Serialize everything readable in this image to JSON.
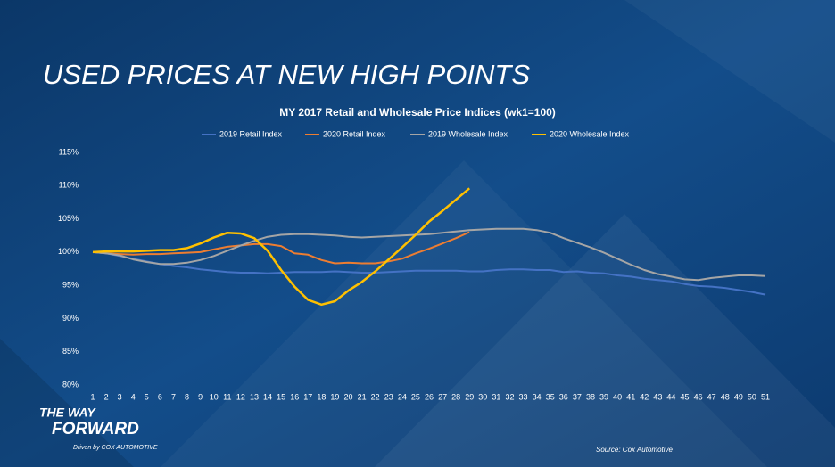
{
  "slide": {
    "title": "USED PRICES AT NEW HIGH POINTS",
    "brand_line1": "THE WAY",
    "brand_line2": "FORWARD",
    "brand_tagline": "Driven by COX AUTOMOTIVE",
    "source": "Source: Cox Automotive"
  },
  "chart_data": {
    "type": "line",
    "title": "MY 2017 Retail and Wholesale Price Indices (wk1=100)",
    "categories": [
      1,
      2,
      3,
      4,
      5,
      6,
      7,
      8,
      9,
      10,
      11,
      12,
      13,
      14,
      15,
      16,
      17,
      18,
      19,
      20,
      21,
      22,
      23,
      24,
      25,
      26,
      27,
      28,
      29,
      30,
      31,
      32,
      33,
      34,
      35,
      36,
      37,
      38,
      39,
      40,
      41,
      42,
      43,
      44,
      45,
      46,
      47,
      48,
      49,
      50,
      51
    ],
    "series": [
      {
        "name": "2019 Retail Index",
        "color": "#4472c4",
        "values": [
          100,
          99.8,
          99.4,
          99,
          98.6,
          98.2,
          97.9,
          97.7,
          97.4,
          97.2,
          97.0,
          96.9,
          96.9,
          96.8,
          96.9,
          97.0,
          97.0,
          97.0,
          97.1,
          97.0,
          96.9,
          96.9,
          97.0,
          97.1,
          97.2,
          97.2,
          97.2,
          97.2,
          97.1,
          97.1,
          97.3,
          97.4,
          97.4,
          97.3,
          97.3,
          97.0,
          97.1,
          96.9,
          96.8,
          96.5,
          96.3,
          96.0,
          95.8,
          95.6,
          95.2,
          94.9,
          94.8,
          94.6,
          94.3,
          94.0,
          93.6
        ]
      },
      {
        "name": "2020 Retail Index",
        "color": "#ed7d31",
        "values": [
          100,
          99.8,
          99.7,
          99.6,
          99.7,
          99.7,
          99.8,
          99.9,
          100.0,
          100.4,
          100.8,
          101.0,
          101.2,
          101.2,
          100.9,
          99.8,
          99.6,
          98.8,
          98.3,
          98.4,
          98.3,
          98.3,
          98.6,
          99.0,
          99.8,
          100.5,
          101.3,
          102.1,
          103.0,
          null,
          null,
          null,
          null,
          null,
          null,
          null,
          null,
          null,
          null,
          null,
          null,
          null,
          null,
          null,
          null,
          null,
          null,
          null,
          null,
          null,
          null
        ]
      },
      {
        "name": "2019 Wholesale Index",
        "color": "#a5a5a5",
        "values": [
          100,
          99.8,
          99.5,
          98.9,
          98.5,
          98.2,
          98.2,
          98.4,
          98.8,
          99.4,
          100.2,
          101.0,
          101.7,
          102.3,
          102.6,
          102.7,
          102.7,
          102.6,
          102.5,
          102.3,
          102.2,
          102.3,
          102.4,
          102.5,
          102.6,
          102.7,
          102.9,
          103.1,
          103.3,
          103.4,
          103.5,
          103.5,
          103.5,
          103.3,
          102.9,
          102.1,
          101.4,
          100.7,
          99.9,
          99.0,
          98.1,
          97.3,
          96.7,
          96.3,
          95.9,
          95.8,
          96.1,
          96.3,
          96.5,
          96.5,
          96.4
        ]
      },
      {
        "name": "2020 Wholesale Index",
        "color": "#ffc000",
        "values": [
          100,
          100.1,
          100.1,
          100.1,
          100.2,
          100.3,
          100.3,
          100.6,
          101.3,
          102.2,
          102.9,
          102.8,
          102.1,
          100.2,
          97.3,
          94.8,
          92.8,
          92.1,
          92.6,
          94.2,
          95.5,
          97.1,
          98.9,
          100.7,
          102.6,
          104.6,
          106.2,
          107.9,
          109.6,
          null,
          null,
          null,
          null,
          null,
          null,
          null,
          null,
          null,
          null,
          null,
          null,
          null,
          null,
          null,
          null,
          null,
          null,
          null,
          null,
          null,
          null
        ]
      }
    ],
    "ylim": [
      80,
      115
    ],
    "yticks": [
      {
        "value": 80,
        "label": "80%"
      },
      {
        "value": 85,
        "label": "85%"
      },
      {
        "value": 90,
        "label": "90%"
      },
      {
        "value": 95,
        "label": "95%"
      },
      {
        "value": 100,
        "label": "100%"
      },
      {
        "value": 105,
        "label": "105%"
      },
      {
        "value": 110,
        "label": "110%"
      },
      {
        "value": 115,
        "label": "115%"
      }
    ]
  }
}
